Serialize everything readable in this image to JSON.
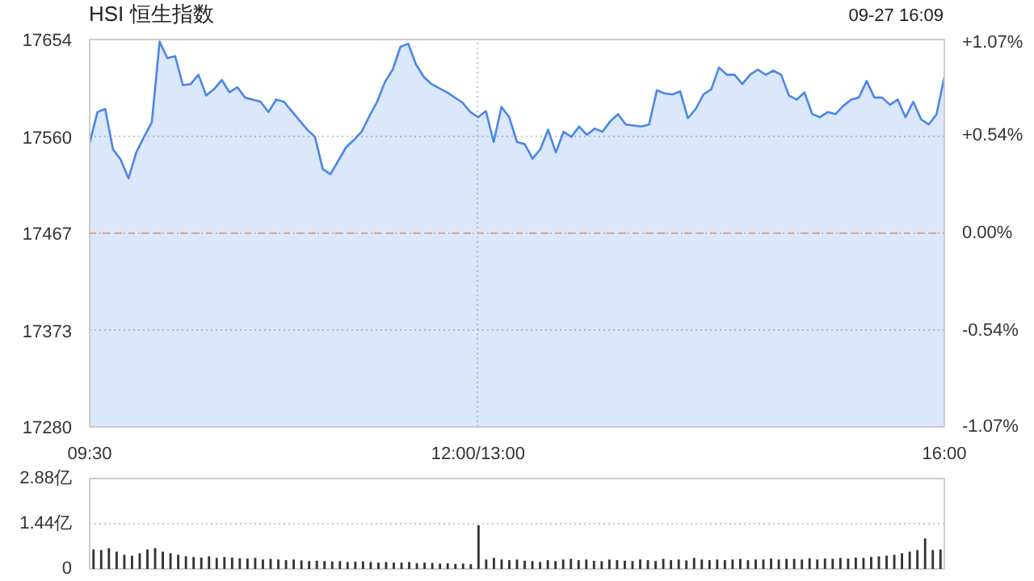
{
  "chart_data": [
    {
      "type": "area",
      "title": "HSI 恒生指数",
      "annotations": [
        "09-27 16:09"
      ],
      "categories": [
        "09:30",
        null,
        null,
        null,
        null,
        null,
        null,
        null,
        null,
        null,
        null,
        null,
        null,
        null,
        null,
        null,
        null,
        null,
        null,
        null,
        null,
        null,
        null,
        null,
        null,
        null,
        null,
        null,
        null,
        null,
        null,
        null,
        null,
        null,
        null,
        null,
        null,
        null,
        null,
        null,
        null,
        null,
        null,
        null,
        null,
        null,
        null,
        null,
        null,
        null,
        "12:00/13:00",
        null,
        null,
        null,
        null,
        null,
        null,
        null,
        null,
        null,
        null,
        null,
        null,
        null,
        null,
        null,
        null,
        null,
        null,
        null,
        null,
        null,
        null,
        null,
        null,
        null,
        null,
        null,
        null,
        null,
        null,
        null,
        null,
        null,
        null,
        null,
        null,
        null,
        null,
        null,
        null,
        null,
        null,
        null,
        null,
        null,
        null,
        null,
        null,
        null,
        null,
        null,
        null,
        null,
        null,
        null,
        null,
        null,
        null,
        null,
        "16:00"
      ],
      "series": [
        {
          "color": "#4a86e8",
          "values": [
            17554,
            17584,
            17587,
            17548,
            17538,
            17520,
            17545,
            17560,
            17574,
            17652,
            17636,
            17638,
            17610,
            17611,
            17620,
            17600,
            17606,
            17615,
            17603,
            17608,
            17598,
            17596,
            17594,
            17584,
            17596,
            17594,
            17585,
            17576,
            17567,
            17560,
            17529,
            17524,
            17537,
            17550,
            17557,
            17565,
            17580,
            17594,
            17613,
            17625,
            17647,
            17650,
            17630,
            17618,
            17611,
            17607,
            17603,
            17598,
            17593,
            17584,
            17579,
            17585,
            17555,
            17589,
            17579,
            17555,
            17553,
            17539,
            17548,
            17567,
            17545,
            17565,
            17560,
            17570,
            17562,
            17568,
            17565,
            17575,
            17582,
            17572,
            17571,
            17570,
            17572,
            17605,
            17602,
            17601,
            17604,
            17578,
            17587,
            17601,
            17606,
            17627,
            17620,
            17620,
            17611,
            17620,
            17625,
            17620,
            17624,
            17620,
            17600,
            17596,
            17603,
            17582,
            17579,
            17584,
            17582,
            17590,
            17596,
            17598,
            17614,
            17598,
            17598,
            17591,
            17596,
            17579,
            17594,
            17577,
            17572,
            17582,
            17618
          ]
        }
      ],
      "ylim": [
        17280,
        17654
      ],
      "yticks": [
        17280,
        17373,
        17467,
        17560,
        17654
      ],
      "y2lim": [
        -1.07,
        1.07
      ],
      "y2ticks": [
        {
          "value": -1.07,
          "label": "-1.07%"
        },
        {
          "value": -0.54,
          "label": "-0.54%"
        },
        {
          "value": 0,
          "label": "0.00%"
        },
        {
          "value": 0.54,
          "label": "+0.54%"
        },
        {
          "value": 1.07,
          "label": "+1.07%"
        }
      ],
      "ref_lines": [
        {
          "axis": "y",
          "value": 17467,
          "color": "#e8a07a",
          "line_style": "dashed"
        }
      ],
      "grid": true
    },
    {
      "type": "bar",
      "color": "#333333",
      "categories": [
        null,
        null,
        null,
        null,
        null,
        null,
        null,
        null,
        null,
        null,
        null,
        null,
        null,
        null,
        null,
        null,
        null,
        null,
        null,
        null,
        null,
        null,
        null,
        null,
        null,
        null,
        null,
        null,
        null,
        null,
        null,
        null,
        null,
        null,
        null,
        null,
        null,
        null,
        null,
        null,
        null,
        null,
        null,
        null,
        null,
        null,
        null,
        null,
        null,
        null,
        null,
        null,
        null,
        null,
        null,
        null,
        null,
        null,
        null,
        null,
        null,
        null,
        null,
        null,
        null,
        null,
        null,
        null,
        null,
        null,
        null,
        null,
        null,
        null,
        null,
        null,
        null,
        null,
        null,
        null,
        null,
        null,
        null,
        null,
        null,
        null,
        null,
        null,
        null,
        null,
        null,
        null,
        null,
        null,
        null,
        null,
        null,
        null,
        null,
        null,
        null,
        null,
        null,
        null,
        null,
        null,
        null,
        null,
        null,
        null,
        null
      ],
      "values": [
        0.62,
        0.6,
        0.66,
        0.55,
        0.45,
        0.42,
        0.5,
        0.62,
        0.66,
        0.55,
        0.5,
        0.45,
        0.4,
        0.38,
        0.36,
        0.4,
        0.35,
        0.38,
        0.36,
        0.34,
        0.33,
        0.35,
        0.3,
        0.32,
        0.3,
        0.28,
        0.3,
        0.27,
        0.25,
        0.26,
        0.25,
        0.24,
        0.25,
        0.22,
        0.23,
        0.24,
        0.22,
        0.2,
        0.22,
        0.2,
        0.2,
        0.22,
        0.18,
        0.2,
        0.19,
        0.17,
        0.18,
        0.16,
        0.17,
        0.15,
        1.39,
        0.3,
        0.35,
        0.3,
        0.28,
        0.3,
        0.26,
        0.25,
        0.22,
        0.28,
        0.25,
        0.3,
        0.32,
        0.28,
        0.3,
        0.26,
        0.25,
        0.3,
        0.28,
        0.26,
        0.25,
        0.3,
        0.28,
        0.25,
        0.32,
        0.28,
        0.3,
        0.27,
        0.35,
        0.3,
        0.28,
        0.3,
        0.28,
        0.3,
        0.32,
        0.28,
        0.3,
        0.3,
        0.33,
        0.3,
        0.32,
        0.32,
        0.3,
        0.34,
        0.3,
        0.33,
        0.32,
        0.35,
        0.33,
        0.36,
        0.35,
        0.38,
        0.4,
        0.42,
        0.45,
        0.5,
        0.55,
        0.6,
        0.97,
        0.6,
        0.62
      ],
      "ylim": [
        0,
        2.88
      ],
      "yticks": [
        0,
        {
          "value": 1.44,
          "label": "1.44亿"
        },
        {
          "value": 2.88,
          "label": "2.88亿"
        }
      ],
      "grid": "y",
      "tick_labels": "y"
    }
  ]
}
